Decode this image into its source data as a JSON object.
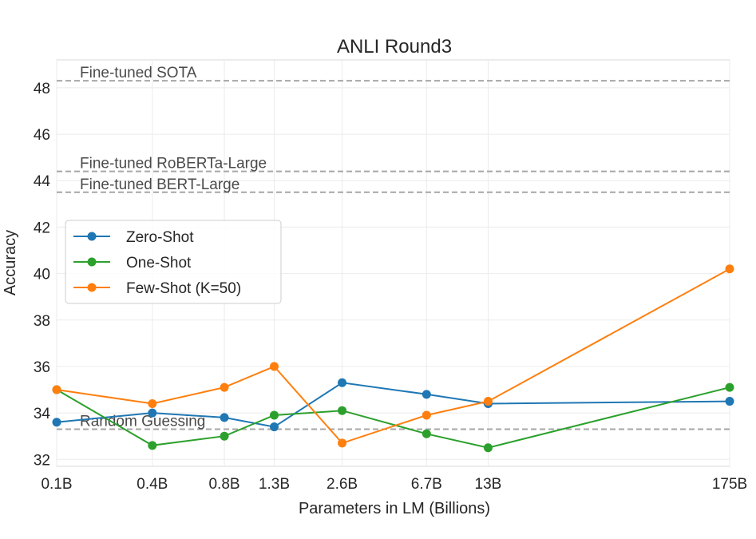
{
  "chart_data": {
    "type": "line",
    "title": "ANLI Round3",
    "xlabel": "Parameters in LM (Billions)",
    "ylabel": "Accuracy",
    "x_scale": "log",
    "categories": [
      "0.1B",
      "0.4B",
      "0.8B",
      "1.3B",
      "2.6B",
      "6.7B",
      "13B",
      "175B"
    ],
    "x": [
      0.125,
      0.35,
      0.76,
      1.3,
      2.7,
      6.7,
      13,
      175
    ],
    "ylim": [
      31.7,
      49.2
    ],
    "yticks": [
      32,
      34,
      36,
      38,
      40,
      42,
      44,
      46,
      48
    ],
    "grid": true,
    "legend_position": "center-left",
    "series": [
      {
        "name": "Zero-Shot",
        "color": "#1f77b4",
        "values": [
          33.6,
          34.0,
          33.8,
          33.4,
          35.3,
          34.8,
          34.4,
          34.5
        ]
      },
      {
        "name": "One-Shot",
        "color": "#2ca02c",
        "values": [
          35.0,
          32.6,
          33.0,
          33.9,
          34.1,
          33.1,
          32.5,
          35.1
        ]
      },
      {
        "name": "Few-Shot (K=50)",
        "color": "#ff7f0e",
        "values": [
          35.0,
          34.4,
          35.1,
          36.0,
          32.7,
          33.9,
          34.5,
          40.2
        ]
      }
    ],
    "reference_lines": [
      {
        "label": "Fine-tuned SOTA",
        "value": 48.3
      },
      {
        "label": "Fine-tuned RoBERTa-Large",
        "value": 44.4
      },
      {
        "label": "Fine-tuned BERT-Large",
        "value": 43.5
      },
      {
        "label": "Random Guessing",
        "value": 33.3
      }
    ]
  }
}
